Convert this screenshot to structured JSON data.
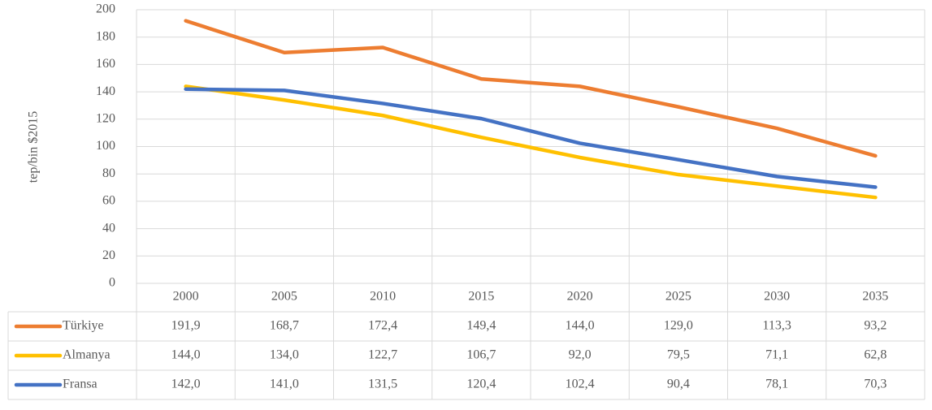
{
  "chart_data": {
    "type": "line",
    "y_label": "tep/bin $2015",
    "categories": [
      "2000",
      "2005",
      "2010",
      "2015",
      "2020",
      "2025",
      "2030",
      "2035"
    ],
    "series": [
      {
        "name": "Türkiye",
        "color": "#ed7d31",
        "values": [
          191.9,
          168.7,
          172.4,
          149.4,
          144.0,
          129.0,
          113.3,
          93.2
        ],
        "value_labels": [
          "191,9",
          "168,7",
          "172,4",
          "149,4",
          "144,0",
          "129,0",
          "113,3",
          "93,2"
        ]
      },
      {
        "name": "Almanya",
        "color": "#ffc000",
        "values": [
          144.0,
          134.0,
          122.7,
          106.7,
          92.0,
          79.5,
          71.1,
          62.8
        ],
        "value_labels": [
          "144,0",
          "134,0",
          "122,7",
          "106,7",
          "92,0",
          "79,5",
          "71,1",
          "62,8"
        ]
      },
      {
        "name": "Fransa",
        "color": "#4472c4",
        "values": [
          142.0,
          141.0,
          131.5,
          120.4,
          102.4,
          90.4,
          78.1,
          70.3
        ],
        "value_labels": [
          "142,0",
          "141,0",
          "131,5",
          "120,4",
          "102,4",
          "90,4",
          "78,1",
          "70,3"
        ]
      }
    ],
    "ylim": [
      0,
      200
    ],
    "yticks": [
      0,
      20,
      40,
      60,
      80,
      100,
      120,
      140,
      160,
      180,
      200
    ],
    "grid": true
  }
}
